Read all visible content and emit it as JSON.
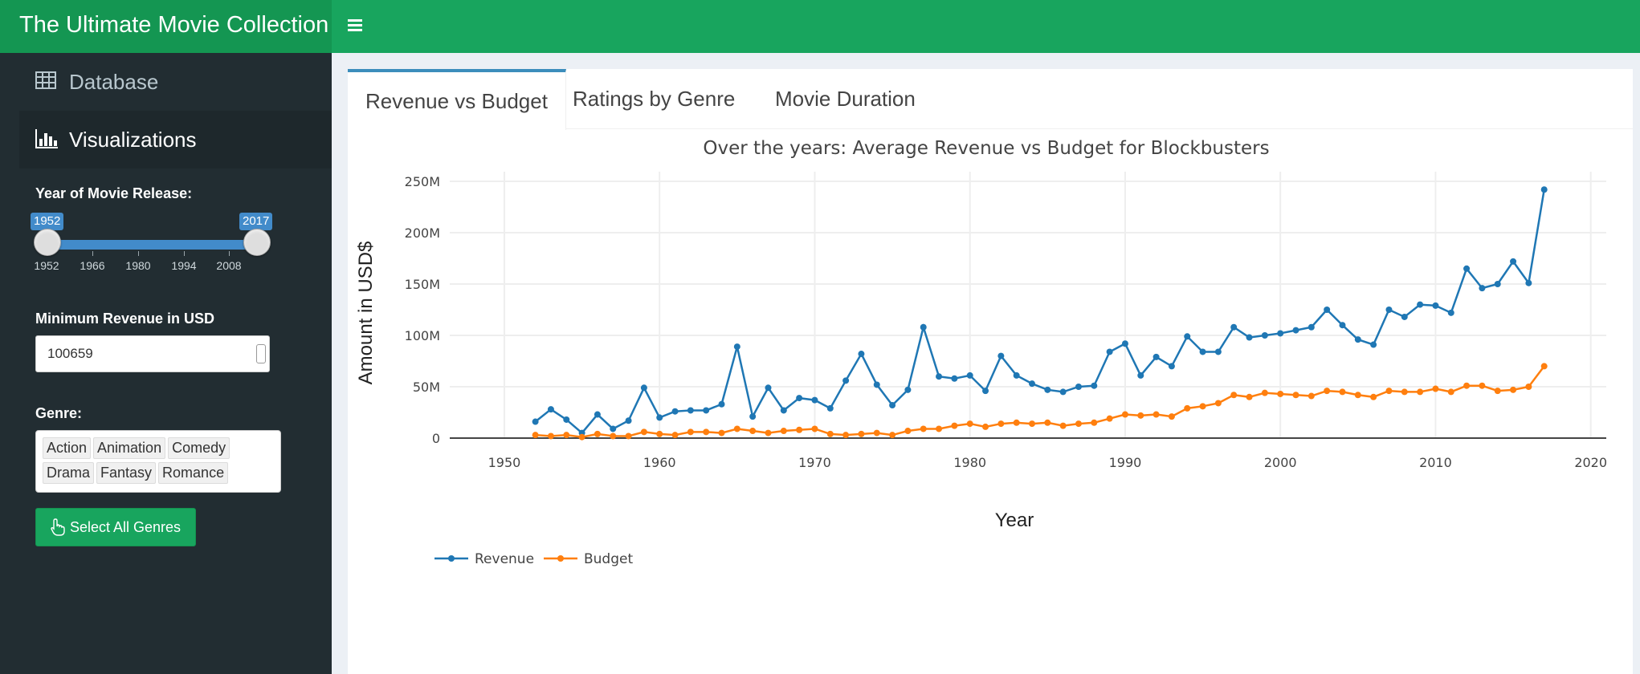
{
  "app": {
    "title": "The Ultimate Movie Collection",
    "accent": "#18a55e",
    "sidebar_bg": "#222d32"
  },
  "sidebar": {
    "items": [
      {
        "label": "Database",
        "icon": "table-icon"
      },
      {
        "label": "Visualizations",
        "icon": "bar-chart-icon"
      }
    ],
    "year_slider": {
      "label": "Year of Movie Release:",
      "min_value": "1952",
      "max_value": "2017",
      "ticks": [
        "1952",
        "1966",
        "1980",
        "1994",
        "2008"
      ]
    },
    "revenue": {
      "label": "Minimum Revenue in USD",
      "value": "100659"
    },
    "genre": {
      "label": "Genre:",
      "chips": [
        "Action",
        "Animation",
        "Comedy",
        "Drama",
        "Fantasy",
        "Romance"
      ]
    },
    "select_all_label": "Select All Genres"
  },
  "tabs": [
    {
      "label": "Revenue vs Budget"
    },
    {
      "label": "Ratings by Genre"
    },
    {
      "label": "Movie Duration"
    }
  ],
  "chart_data": {
    "type": "line",
    "title": "Over the years: Average Revenue vs Budget for Blockbusters",
    "xlabel": "Year",
    "ylabel": "Amount in USD$",
    "xlim": [
      1947,
      2021
    ],
    "ylim": [
      0,
      250000000
    ],
    "x_ticks": [
      "1950",
      "1960",
      "1970",
      "1980",
      "1990",
      "2000",
      "2010",
      "2020"
    ],
    "y_ticks": [
      {
        "v": 0,
        "label": "0"
      },
      {
        "v": 50000000,
        "label": "50M"
      },
      {
        "v": 100000000,
        "label": "100M"
      },
      {
        "v": 150000000,
        "label": "150M"
      },
      {
        "v": 200000000,
        "label": "200M"
      },
      {
        "v": 250000000,
        "label": "250M"
      }
    ],
    "grid": true,
    "legend_position": "bottom-left",
    "series": [
      {
        "name": "Revenue",
        "color": "#1f77b4",
        "points": [
          [
            1952,
            16
          ],
          [
            1953,
            28
          ],
          [
            1954,
            18
          ],
          [
            1955,
            5
          ],
          [
            1956,
            23
          ],
          [
            1957,
            9
          ],
          [
            1958,
            17
          ],
          [
            1959,
            49
          ],
          [
            1960,
            20
          ],
          [
            1961,
            26
          ],
          [
            1962,
            27
          ],
          [
            1963,
            27
          ],
          [
            1964,
            33
          ],
          [
            1965,
            89
          ],
          [
            1966,
            21
          ],
          [
            1967,
            49
          ],
          [
            1968,
            27
          ],
          [
            1969,
            39
          ],
          [
            1970,
            37
          ],
          [
            1971,
            29
          ],
          [
            1972,
            56
          ],
          [
            1973,
            82
          ],
          [
            1974,
            52
          ],
          [
            1975,
            32
          ],
          [
            1976,
            47
          ],
          [
            1977,
            108
          ],
          [
            1978,
            60
          ],
          [
            1979,
            58
          ],
          [
            1980,
            61
          ],
          [
            1981,
            46
          ],
          [
            1982,
            80
          ],
          [
            1983,
            61
          ],
          [
            1984,
            53
          ],
          [
            1985,
            47
          ],
          [
            1986,
            45
          ],
          [
            1987,
            50
          ],
          [
            1988,
            51
          ],
          [
            1989,
            84
          ],
          [
            1990,
            92
          ],
          [
            1991,
            61
          ],
          [
            1992,
            79
          ],
          [
            1993,
            70
          ],
          [
            1994,
            99
          ],
          [
            1995,
            84
          ],
          [
            1996,
            84
          ],
          [
            1997,
            108
          ],
          [
            1998,
            98
          ],
          [
            1999,
            100
          ],
          [
            2000,
            102
          ],
          [
            2001,
            105
          ],
          [
            2002,
            108
          ],
          [
            2003,
            125
          ],
          [
            2004,
            110
          ],
          [
            2005,
            96
          ],
          [
            2006,
            91
          ],
          [
            2007,
            125
          ],
          [
            2008,
            118
          ],
          [
            2009,
            130
          ],
          [
            2010,
            129
          ],
          [
            2011,
            122
          ],
          [
            2012,
            165
          ],
          [
            2013,
            146
          ],
          [
            2014,
            150
          ],
          [
            2015,
            172
          ],
          [
            2016,
            151
          ],
          [
            2017,
            242
          ]
        ]
      },
      {
        "name": "Budget",
        "color": "#ff7f0e",
        "points": [
          [
            1952,
            3
          ],
          [
            1953,
            2
          ],
          [
            1954,
            3
          ],
          [
            1955,
            1
          ],
          [
            1956,
            4
          ],
          [
            1957,
            2
          ],
          [
            1958,
            2
          ],
          [
            1959,
            6
          ],
          [
            1960,
            4
          ],
          [
            1961,
            3
          ],
          [
            1962,
            6
          ],
          [
            1963,
            6
          ],
          [
            1964,
            5
          ],
          [
            1965,
            9
          ],
          [
            1966,
            7
          ],
          [
            1967,
            5
          ],
          [
            1968,
            7
          ],
          [
            1969,
            8
          ],
          [
            1970,
            9
          ],
          [
            1971,
            4
          ],
          [
            1972,
            3
          ],
          [
            1973,
            4
          ],
          [
            1974,
            5
          ],
          [
            1975,
            3
          ],
          [
            1976,
            7
          ],
          [
            1977,
            9
          ],
          [
            1978,
            9
          ],
          [
            1979,
            12
          ],
          [
            1980,
            14
          ],
          [
            1981,
            11
          ],
          [
            1982,
            14
          ],
          [
            1983,
            15
          ],
          [
            1984,
            14
          ],
          [
            1985,
            15
          ],
          [
            1986,
            12
          ],
          [
            1987,
            14
          ],
          [
            1988,
            15
          ],
          [
            1989,
            19
          ],
          [
            1990,
            23
          ],
          [
            1991,
            22
          ],
          [
            1992,
            23
          ],
          [
            1993,
            21
          ],
          [
            1994,
            29
          ],
          [
            1995,
            31
          ],
          [
            1996,
            34
          ],
          [
            1997,
            42
          ],
          [
            1998,
            40
          ],
          [
            1999,
            44
          ],
          [
            2000,
            43
          ],
          [
            2001,
            42
          ],
          [
            2002,
            41
          ],
          [
            2003,
            46
          ],
          [
            2004,
            45
          ],
          [
            2005,
            42
          ],
          [
            2006,
            40
          ],
          [
            2007,
            46
          ],
          [
            2008,
            45
          ],
          [
            2009,
            45
          ],
          [
            2010,
            48
          ],
          [
            2011,
            45
          ],
          [
            2012,
            51
          ],
          [
            2013,
            51
          ],
          [
            2014,
            46
          ],
          [
            2015,
            47
          ],
          [
            2016,
            50
          ],
          [
            2017,
            70
          ]
        ]
      }
    ]
  }
}
